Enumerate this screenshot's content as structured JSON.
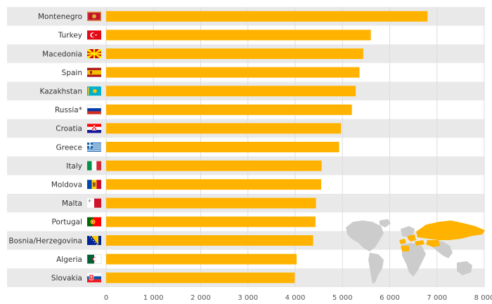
{
  "chart_data": {
    "type": "bar",
    "orientation": "horizontal",
    "categories": [
      "Montenegro",
      "Turkey",
      "Macedonia",
      "Spain",
      "Kazakhstan",
      "Russia*",
      "Croatia",
      "Greece",
      "Italy",
      "Moldova",
      "Malta",
      "Portugal",
      "Bosnia/Herzegovina",
      "Algeria",
      "Slovakia"
    ],
    "values": [
      6800,
      5600,
      5440,
      5360,
      5280,
      5200,
      4970,
      4930,
      4560,
      4550,
      4440,
      4430,
      4380,
      4030,
      3990
    ],
    "flags": [
      "montenegro-flag-icon",
      "turkey-flag-icon",
      "macedonia-flag-icon",
      "spain-flag-icon",
      "kazakhstan-flag-icon",
      "russia-flag-icon",
      "croatia-flag-icon",
      "greece-flag-icon",
      "italy-flag-icon",
      "moldova-flag-icon",
      "malta-flag-icon",
      "portugal-flag-icon",
      "bosnia-herzegovina-flag-icon",
      "algeria-flag-icon",
      "slovakia-flag-icon"
    ],
    "x_ticks": [
      "0",
      "1 000",
      "2 000",
      "3 000",
      "4 000",
      "5 000",
      "6 000",
      "7 000",
      "8 000"
    ],
    "xlim": [
      0,
      8000
    ],
    "title": "",
    "xlabel": "",
    "ylabel": "",
    "grid": true,
    "colors": {
      "bar": "#FFB300",
      "row_band": "#E9E9E9",
      "grid": "#DDDDDD",
      "map_land": "#CCCCCC",
      "map_highlight": "#FFB300"
    }
  }
}
